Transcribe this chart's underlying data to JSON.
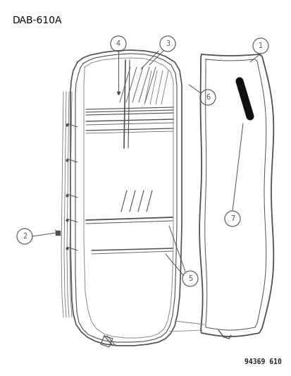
{
  "title": "DAB-610A",
  "catalog_number": "94369 610",
  "background_color": "#ffffff",
  "line_color": "#505050",
  "figsize": [
    4.14,
    5.33
  ],
  "dpi": 100
}
